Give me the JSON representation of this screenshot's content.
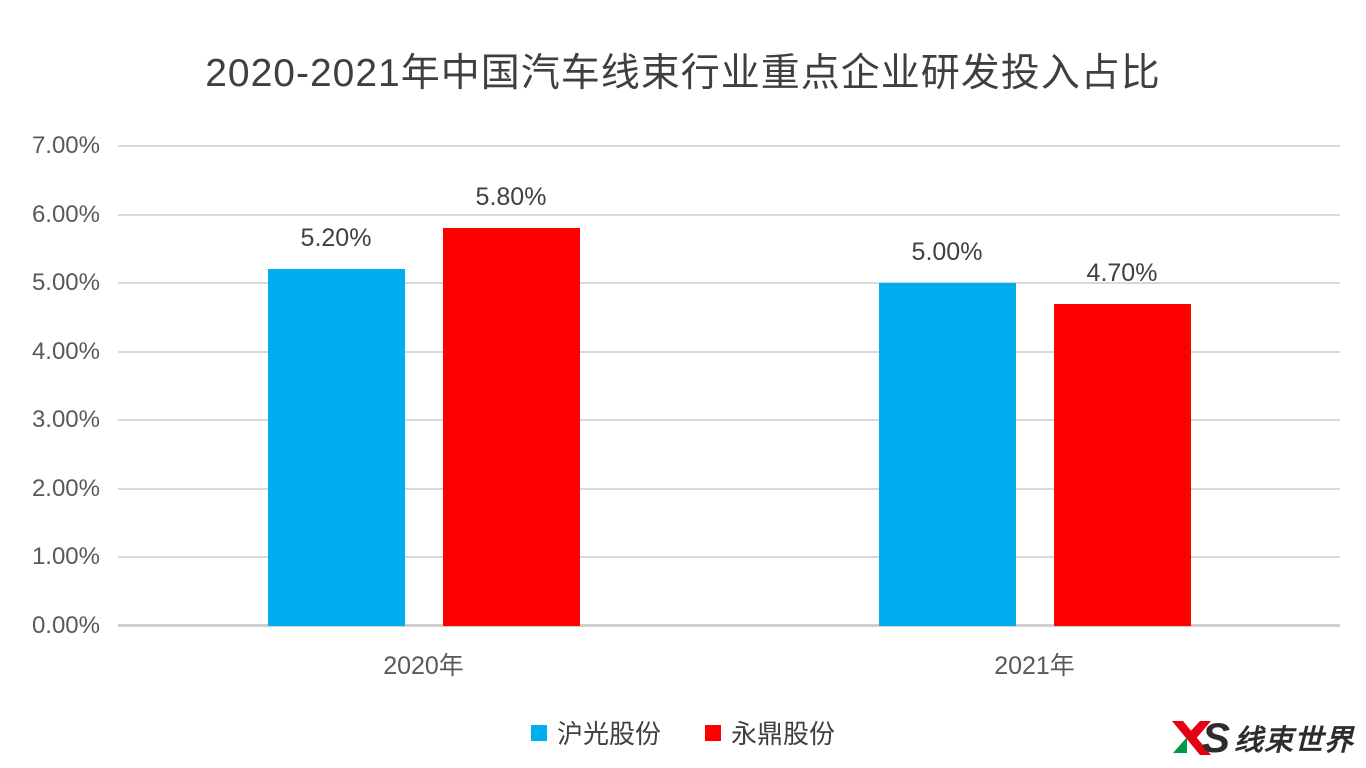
{
  "chart_data": {
    "type": "bar",
    "title": "2020-2021年中国汽车线束行业重点企业研发投入占比",
    "categories": [
      "2020年",
      "2021年"
    ],
    "series": [
      {
        "name": "沪光股份",
        "color": "#00AEEF",
        "values": [
          5.2,
          5.0
        ],
        "labels": [
          "5.20%",
          "5.00%"
        ]
      },
      {
        "name": "永鼎股份",
        "color": "#FF0000",
        "values": [
          5.8,
          4.7
        ],
        "labels": [
          "5.80%",
          "4.70%"
        ]
      }
    ],
    "xlabel": "",
    "ylabel": "",
    "ylim": [
      0,
      7
    ],
    "yticks": [
      "0.00%",
      "1.00%",
      "2.00%",
      "3.00%",
      "4.00%",
      "5.00%",
      "6.00%",
      "7.00%"
    ],
    "grid": true,
    "legend_position": "bottom"
  },
  "logo": {
    "s_text": "S",
    "name_text": "线束世界",
    "red": "#E60012",
    "green": "#009944",
    "dark": "#2D2D2D"
  },
  "colors": {
    "title_text": "#3F3F3F",
    "axis_text": "#595959",
    "value_label_text": "#404040",
    "gridline": "#D9D9D9",
    "axis_line": "#CFCFCF",
    "background": "#FFFFFF"
  }
}
